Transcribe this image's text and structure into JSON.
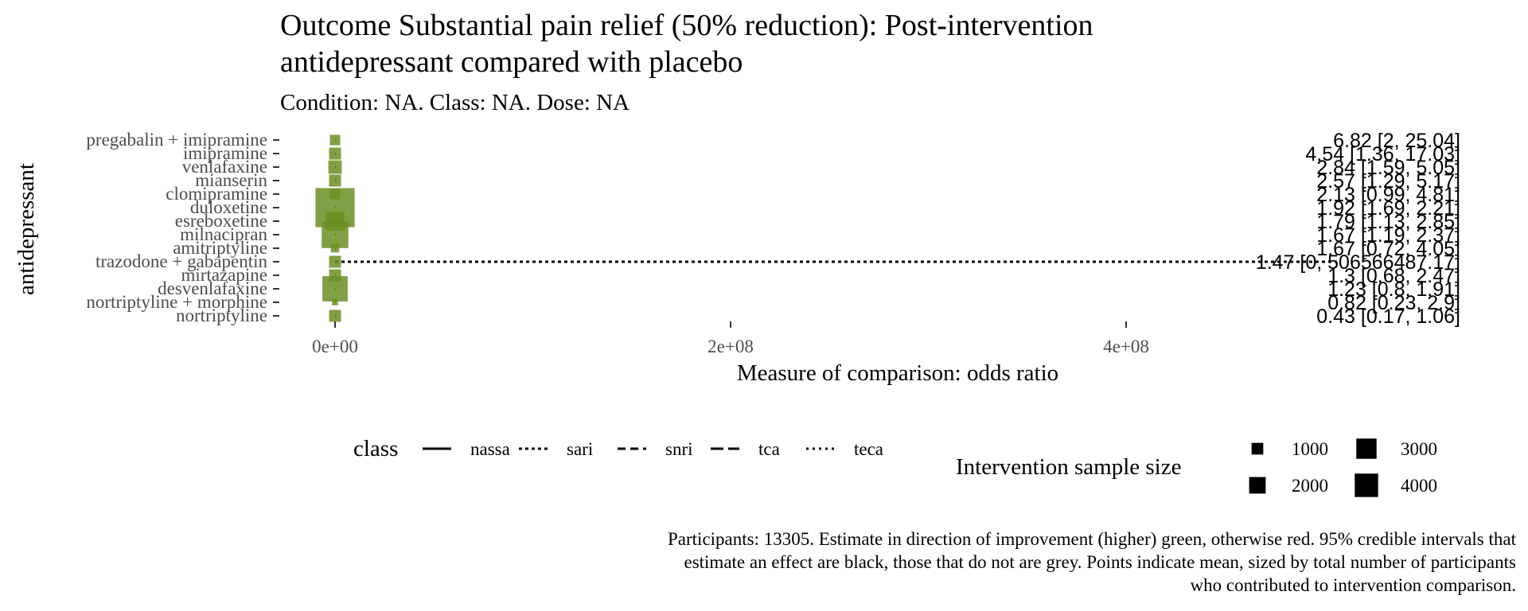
{
  "title": "Outcome Substantial pain relief (50% reduction): Post-intervention antidepressant compared with placebo",
  "subtitle": "Condition: NA. Class: NA. Dose: NA",
  "caption": "Participants: 13305. Estimate in direction of improvement (higher) green, otherwise red. 95% credible intervals that estimate an effect are black, those that do not are grey. Points indicate mean, sized by total number of participants who contributed to intervention comparison.",
  "colors": {
    "point": "#6b8e23",
    "interval": "#000000"
  },
  "chart_data": {
    "type": "scatter",
    "subtype": "forest",
    "title": "Outcome Substantial pain relief (50% reduction): Post-intervention antidepressant compared with placebo",
    "subtitle": "Condition: NA. Class: NA. Dose: NA",
    "xlabel": "Measure of comparison: odds ratio",
    "ylabel": "antidepressant",
    "xlim": [
      -70000000,
      560000000
    ],
    "xticks": [
      0,
      200000000,
      400000000
    ],
    "xtick_labels": [
      "0e+00",
      "2e+08",
      "4e+08"
    ],
    "grid": false,
    "legend_position": "bottom",
    "rows": [
      {
        "name": "pregabalin + imipramine",
        "estimate": 6.82,
        "lower": 2,
        "upper": 25.04,
        "label": "6.82 [2, 25.04]",
        "class": "teca",
        "n": 300
      },
      {
        "name": "imipramine",
        "estimate": 4.54,
        "lower": 1.36,
        "upper": 17.03,
        "label": "4.54 [1.36, 17.03]",
        "class": "tca",
        "n": 400
      },
      {
        "name": "venlafaxine",
        "estimate": 2.84,
        "lower": 1.59,
        "upper": 5.05,
        "label": "2.84 [1.59, 5.05]",
        "class": "snri",
        "n": 500
      },
      {
        "name": "mianserin",
        "estimate": 2.57,
        "lower": 1.29,
        "upper": 5.17,
        "label": "2.57 [1.29, 5.17]",
        "class": "tca",
        "n": 400
      },
      {
        "name": "clomipramine",
        "estimate": 2.13,
        "lower": 0.99,
        "upper": 4.81,
        "label": "2.13 [0.99, 4.81]",
        "class": "tca",
        "n": 300
      },
      {
        "name": "duloxetine",
        "estimate": 1.92,
        "lower": 1.69,
        "upper": 2.21,
        "label": "1.92 [1.69, 2.21]",
        "class": "snri",
        "n": 4300
      },
      {
        "name": "esreboxetine",
        "estimate": 1.79,
        "lower": 1.13,
        "upper": 2.85,
        "label": "1.79 [1.13, 2.85]",
        "class": "snri",
        "n": 1000
      },
      {
        "name": "milnacipran",
        "estimate": 1.67,
        "lower": 1.19,
        "upper": 2.37,
        "label": "1.67 [1.19, 2.37]",
        "class": "snri",
        "n": 2000
      },
      {
        "name": "amitriptyline",
        "estimate": 1.67,
        "lower": 0.72,
        "upper": 4.05,
        "label": "1.67 [0.72, 4.05]",
        "class": "tca",
        "n": 200
      },
      {
        "name": "trazodone + gabapentin",
        "estimate": 1.47,
        "lower": 0,
        "upper": 506566487.17,
        "label": "1.47 [0, 506566487.17]",
        "class": "sari",
        "n": 400
      },
      {
        "name": "mirtazapine",
        "estimate": 1.3,
        "lower": 0.68,
        "upper": 2.47,
        "label": "1.3 [0.68, 2.47]",
        "class": "nassa",
        "n": 400
      },
      {
        "name": "desvenlafaxine",
        "estimate": 1.23,
        "lower": 0.8,
        "upper": 1.91,
        "label": "1.23 [0.8, 1.91]",
        "class": "snri",
        "n": 1800
      },
      {
        "name": "nortriptyline + morphine",
        "estimate": 0.82,
        "lower": 0.23,
        "upper": 2.9,
        "label": "0.82 [0.23, 2.9]",
        "class": "tca",
        "n": 100
      },
      {
        "name": "nortriptyline",
        "estimate": 0.43,
        "lower": 0.17,
        "upper": 1.06,
        "label": "0.43 [0.17, 1.06]",
        "class": "tca",
        "n": 400
      }
    ],
    "legend_class": {
      "title": "class",
      "items": [
        {
          "name": "nassa",
          "dash": "solid"
        },
        {
          "name": "sari",
          "dash": "dotted-dash"
        },
        {
          "name": "snri",
          "dash": "dashed"
        },
        {
          "name": "tca",
          "dash": "longdash"
        },
        {
          "name": "teca",
          "dash": "dotted"
        }
      ]
    },
    "legend_size": {
      "title": "Intervention sample size",
      "items": [
        {
          "label": "1000",
          "value": 1000
        },
        {
          "label": "3000",
          "value": 3000
        },
        {
          "label": "2000",
          "value": 2000
        },
        {
          "label": "4000",
          "value": 4000
        }
      ]
    }
  }
}
